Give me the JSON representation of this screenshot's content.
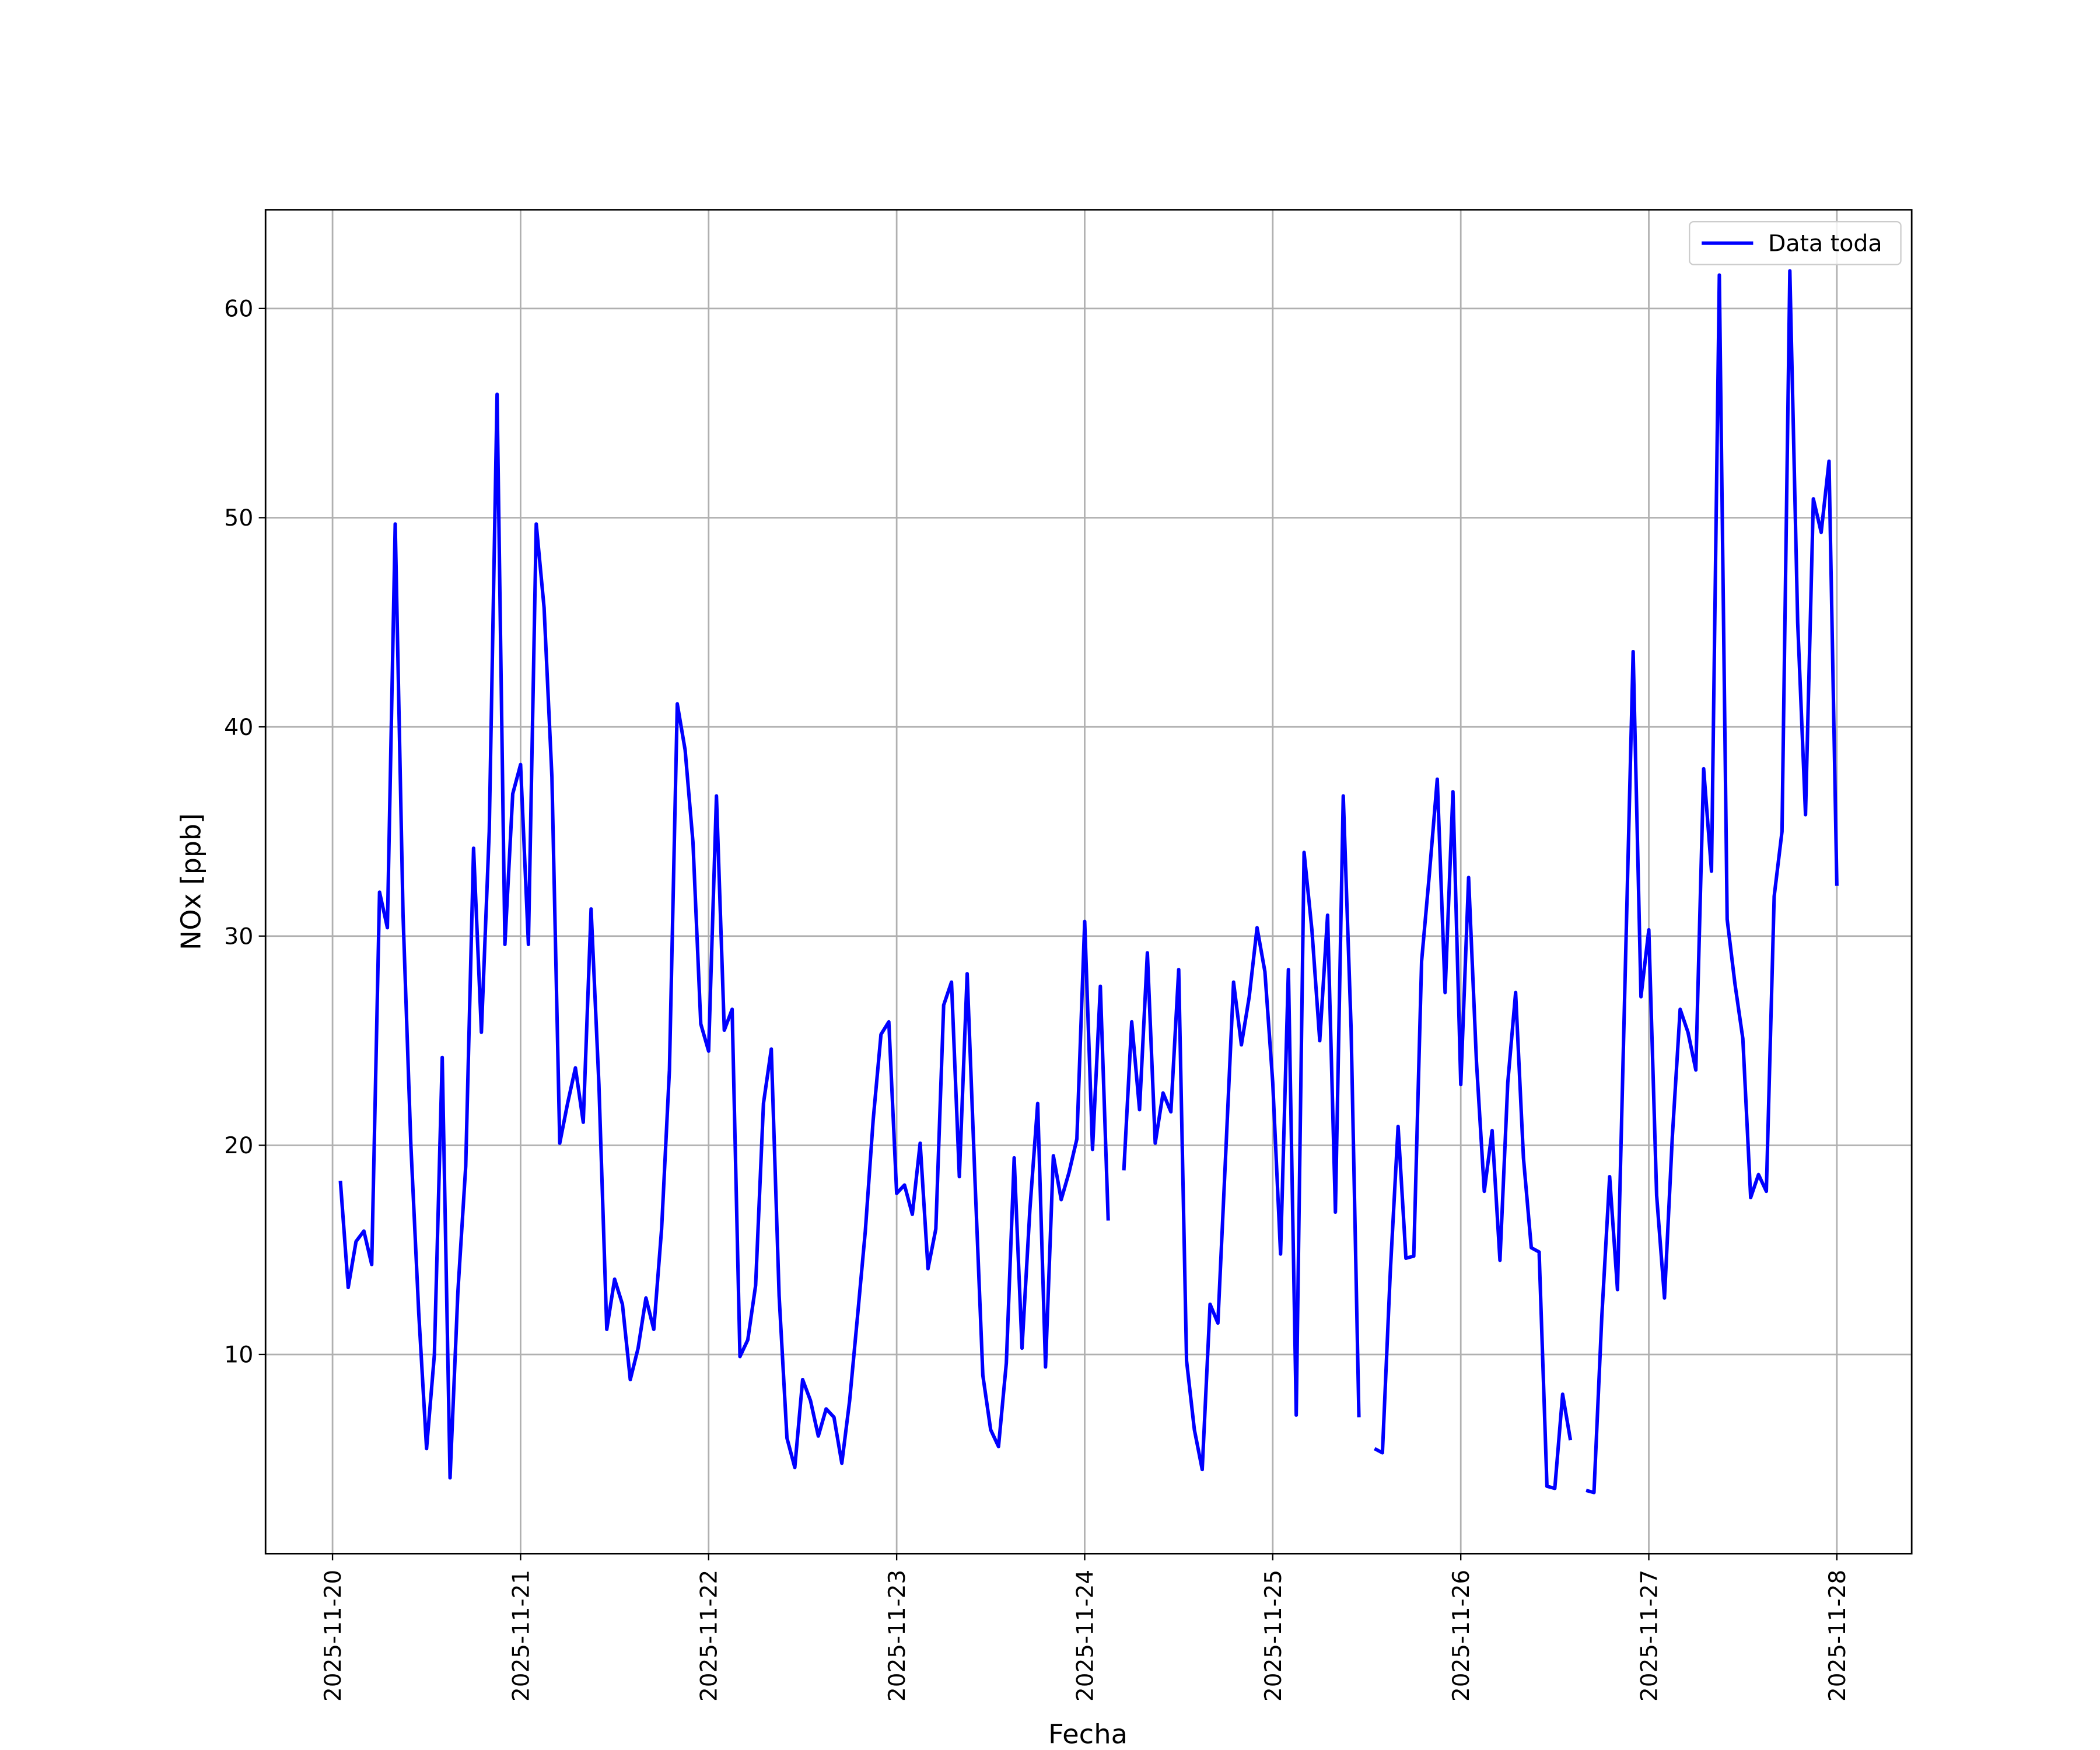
{
  "chart_data": {
    "type": "line",
    "xlabel": "Fecha",
    "ylabel": "NOx [ppb]",
    "legend": "upper right",
    "grid": true,
    "xlim": [
      "2025-11-19 15:27",
      "2025-11-28 09:33"
    ],
    "xticks": [
      "2025-11-20",
      "2025-11-21",
      "2025-11-22",
      "2025-11-23",
      "2025-11-24",
      "2025-11-25",
      "2025-11-26",
      "2025-11-27",
      "2025-11-28"
    ],
    "ylim": [
      0.48,
      64.72
    ],
    "yticks": [
      10,
      20,
      30,
      40,
      50,
      60
    ],
    "x": [
      "2025-11-20 01:00",
      "2025-11-20 02:00",
      "2025-11-20 03:00",
      "2025-11-20 04:00",
      "2025-11-20 05:00",
      "2025-11-20 06:00",
      "2025-11-20 07:00",
      "2025-11-20 08:00",
      "2025-11-20 09:00",
      "2025-11-20 10:00",
      "2025-11-20 11:00",
      "2025-11-20 12:00",
      "2025-11-20 13:00",
      "2025-11-20 14:00",
      "2025-11-20 15:00",
      "2025-11-20 16:00",
      "2025-11-20 17:00",
      "2025-11-20 18:00",
      "2025-11-20 19:00",
      "2025-11-20 20:00",
      "2025-11-20 21:00",
      "2025-11-20 22:00",
      "2025-11-20 23:00",
      "2025-11-21 00:00",
      "2025-11-21 01:00",
      "2025-11-21 02:00",
      "2025-11-21 03:00",
      "2025-11-21 04:00",
      "2025-11-21 05:00",
      "2025-11-21 06:00",
      "2025-11-21 07:00",
      "2025-11-21 08:00",
      "2025-11-21 09:00",
      "2025-11-21 10:00",
      "2025-11-21 11:00",
      "2025-11-21 12:00",
      "2025-11-21 13:00",
      "2025-11-21 14:00",
      "2025-11-21 15:00",
      "2025-11-21 16:00",
      "2025-11-21 17:00",
      "2025-11-21 18:00",
      "2025-11-21 19:00",
      "2025-11-21 20:00",
      "2025-11-21 21:00",
      "2025-11-21 22:00",
      "2025-11-21 23:00",
      "2025-11-22 00:00",
      "2025-11-22 01:00",
      "2025-11-22 02:00",
      "2025-11-22 03:00",
      "2025-11-22 04:00",
      "2025-11-22 05:00",
      "2025-11-22 06:00",
      "2025-11-22 07:00",
      "2025-11-22 08:00",
      "2025-11-22 09:00",
      "2025-11-22 10:00",
      "2025-11-22 11:00",
      "2025-11-22 12:00",
      "2025-11-22 13:00",
      "2025-11-22 14:00",
      "2025-11-22 15:00",
      "2025-11-22 16:00",
      "2025-11-22 17:00",
      "2025-11-22 18:00",
      "2025-11-22 19:00",
      "2025-11-22 20:00",
      "2025-11-22 21:00",
      "2025-11-22 22:00",
      "2025-11-22 23:00",
      "2025-11-23 00:00",
      "2025-11-23 01:00",
      "2025-11-23 02:00",
      "2025-11-23 03:00",
      "2025-11-23 04:00",
      "2025-11-23 05:00",
      "2025-11-23 06:00",
      "2025-11-23 07:00",
      "2025-11-23 08:00",
      "2025-11-23 09:00",
      "2025-11-23 10:00",
      "2025-11-23 11:00",
      "2025-11-23 12:00",
      "2025-11-23 13:00",
      "2025-11-23 14:00",
      "2025-11-23 15:00",
      "2025-11-23 16:00",
      "2025-11-23 17:00",
      "2025-11-23 18:00",
      "2025-11-23 19:00",
      "2025-11-23 20:00",
      "2025-11-23 21:00",
      "2025-11-23 22:00",
      "2025-11-23 23:00",
      "2025-11-24 00:00",
      "2025-11-24 01:00",
      "2025-11-24 02:00",
      "2025-11-24 03:00",
      "2025-11-24 04:00",
      "2025-11-24 05:00",
      "2025-11-24 06:00",
      "2025-11-24 07:00",
      "2025-11-24 08:00",
      "2025-11-24 09:00",
      "2025-11-24 10:00",
      "2025-11-24 11:00",
      "2025-11-24 12:00",
      "2025-11-24 13:00",
      "2025-11-24 14:00",
      "2025-11-24 15:00",
      "2025-11-24 16:00",
      "2025-11-24 17:00",
      "2025-11-24 18:00",
      "2025-11-24 19:00",
      "2025-11-24 20:00",
      "2025-11-24 21:00",
      "2025-11-24 22:00",
      "2025-11-24 23:00",
      "2025-11-25 00:00",
      "2025-11-25 01:00",
      "2025-11-25 02:00",
      "2025-11-25 03:00",
      "2025-11-25 04:00",
      "2025-11-25 05:00",
      "2025-11-25 06:00",
      "2025-11-25 07:00",
      "2025-11-25 08:00",
      "2025-11-25 09:00",
      "2025-11-25 10:00",
      "2025-11-25 11:00",
      "2025-11-25 12:00",
      "2025-11-25 13:00",
      "2025-11-25 14:00",
      "2025-11-25 15:00",
      "2025-11-25 16:00",
      "2025-11-25 17:00",
      "2025-11-25 18:00",
      "2025-11-25 19:00",
      "2025-11-25 20:00",
      "2025-11-25 21:00",
      "2025-11-25 22:00",
      "2025-11-25 23:00",
      "2025-11-26 00:00",
      "2025-11-26 01:00",
      "2025-11-26 02:00",
      "2025-11-26 03:00",
      "2025-11-26 04:00",
      "2025-11-26 05:00",
      "2025-11-26 06:00",
      "2025-11-26 07:00",
      "2025-11-26 08:00",
      "2025-11-26 09:00",
      "2025-11-26 10:00",
      "2025-11-26 11:00",
      "2025-11-26 12:00",
      "2025-11-26 13:00",
      "2025-11-26 14:00",
      "2025-11-26 15:00",
      "2025-11-26 16:00",
      "2025-11-26 17:00",
      "2025-11-26 18:00",
      "2025-11-26 19:00",
      "2025-11-26 20:00",
      "2025-11-26 21:00",
      "2025-11-26 22:00",
      "2025-11-26 23:00",
      "2025-11-27 00:00",
      "2025-11-27 01:00",
      "2025-11-27 02:00",
      "2025-11-27 03:00",
      "2025-11-27 04:00",
      "2025-11-27 05:00",
      "2025-11-27 06:00",
      "2025-11-27 07:00",
      "2025-11-27 08:00",
      "2025-11-27 09:00",
      "2025-11-27 10:00",
      "2025-11-27 11:00",
      "2025-11-27 12:00",
      "2025-11-27 13:00",
      "2025-11-27 14:00",
      "2025-11-27 15:00",
      "2025-11-27 16:00",
      "2025-11-27 17:00",
      "2025-11-27 18:00",
      "2025-11-27 19:00",
      "2025-11-27 20:00",
      "2025-11-27 21:00",
      "2025-11-27 22:00",
      "2025-11-27 23:00",
      "2025-11-28 00:00"
    ],
    "series": [
      {
        "name": "Data toda",
        "color": "#0000ff",
        "values": [
          18.3,
          13.2,
          15.4,
          15.9,
          14.3,
          32.1,
          30.4,
          49.7,
          31,
          20,
          12,
          5.5,
          10,
          24.2,
          4.1,
          13,
          19,
          34.2,
          25.4,
          35,
          55.9,
          29.6,
          36.8,
          38.2,
          29.6,
          49.7,
          45.7,
          37.6,
          20.1,
          22,
          23.7,
          21.1,
          31.3,
          22.9,
          11.2,
          13.6,
          12.4,
          8.8,
          10.3,
          12.7,
          11.2,
          16,
          23.6,
          41.1,
          38.9,
          34.5,
          25.8,
          24.5,
          36.7,
          25.5,
          26.5,
          9.9,
          10.7,
          13.3,
          22,
          24.6,
          12.8,
          6,
          4.6,
          8.8,
          7.8,
          6.1,
          7.4,
          7,
          4.8,
          7.8,
          11.8,
          15.9,
          21.2,
          25.3,
          25.9,
          17.7,
          18.1,
          16.7,
          20.1,
          14.1,
          16,
          26.7,
          27.8,
          18.5,
          28.2,
          18.3,
          9,
          6.4,
          5.6,
          9.6,
          19.4,
          10.3,
          16.9,
          22,
          9.4,
          19.5,
          17.4,
          18.7,
          20.3,
          30.7,
          19.8,
          27.6,
          16.4,
          null,
          18.8,
          25.9,
          21.7,
          29.2,
          20.1,
          22.5,
          21.6,
          28.4,
          9.7,
          6.4,
          4.5,
          12.4,
          11.5,
          19.6,
          27.8,
          24.8,
          27.1,
          30.4,
          28.3,
          23,
          14.8,
          28.4,
          7.1,
          34,
          30.3,
          25,
          31,
          16.8,
          36.7,
          25.6,
          7,
          null,
          5.5,
          5.3,
          13.9,
          20.9,
          14.6,
          14.7,
          28.8,
          33,
          37.5,
          27.3,
          36.9,
          22.9,
          32.8,
          24,
          17.8,
          20.7,
          14.5,
          23,
          27.3,
          19.4,
          15.1,
          14.9,
          3.7,
          3.6,
          8.1,
          5.9,
          null,
          3.5,
          3.4,
          11.8,
          18.5,
          13.1,
          28.4,
          43.6,
          27.1,
          30.3,
          17.6,
          12.7,
          20.4,
          26.5,
          25.4,
          23.6,
          38,
          33.1,
          61.6,
          30.8,
          27.7,
          25.1,
          17.5,
          18.6,
          17.8,
          31.9,
          35,
          61.8,
          45,
          35.8,
          50.9,
          49.3,
          52.7,
          32.4
        ]
      }
    ]
  }
}
